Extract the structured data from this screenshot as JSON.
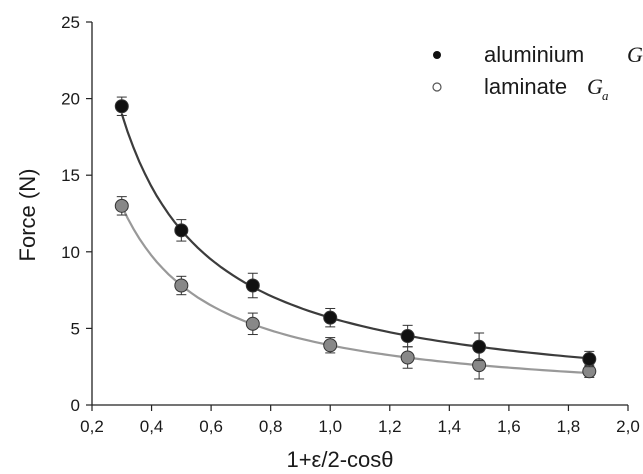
{
  "chart_data": {
    "type": "scatter",
    "xlabel": "1+ε/2-cosθ",
    "ylabel": "Force (N)",
    "xlim": [
      0.2,
      2.0
    ],
    "ylim": [
      0,
      25
    ],
    "xticks": [
      0.2,
      0.4,
      0.6,
      0.8,
      1.0,
      1.2,
      1.4,
      1.6,
      1.8,
      2.0
    ],
    "xtick_labels": [
      "0,2",
      "0,4",
      "0,6",
      "0,8",
      "1,0",
      "1,2",
      "1,4",
      "1,6",
      "1,8",
      "2,0"
    ],
    "yticks": [
      0,
      5,
      10,
      15,
      20,
      25
    ],
    "ytick_labels": [
      "0",
      "5",
      "10",
      "15",
      "20",
      "25"
    ],
    "grid": false,
    "legend_position": "top-right",
    "series": [
      {
        "name": "aluminium",
        "legend_label": "aluminium",
        "legend_symbol": "G",
        "legend_subscript": "",
        "marker": "filled",
        "color": "#111111",
        "curve_color": "#3c3c3c",
        "fit_coefficient": 5.7,
        "x": [
          0.3,
          0.5,
          0.74,
          1.0,
          1.26,
          1.5,
          1.87
        ],
        "y": [
          19.5,
          11.4,
          7.8,
          5.7,
          4.5,
          3.8,
          3.0
        ],
        "err": [
          0.6,
          0.7,
          0.8,
          0.6,
          0.7,
          0.9,
          0.5
        ]
      },
      {
        "name": "laminate",
        "legend_label": "laminate",
        "legend_symbol": "G",
        "legend_subscript": "a",
        "marker": "open",
        "color": "#888888",
        "curve_color": "#999999",
        "fit_coefficient": 3.9,
        "x": [
          0.3,
          0.5,
          0.74,
          1.0,
          1.26,
          1.5,
          1.87
        ],
        "y": [
          13.0,
          7.8,
          5.3,
          3.9,
          3.1,
          2.6,
          2.2
        ],
        "err": [
          0.6,
          0.6,
          0.7,
          0.5,
          0.7,
          0.9,
          0.4
        ]
      }
    ]
  }
}
